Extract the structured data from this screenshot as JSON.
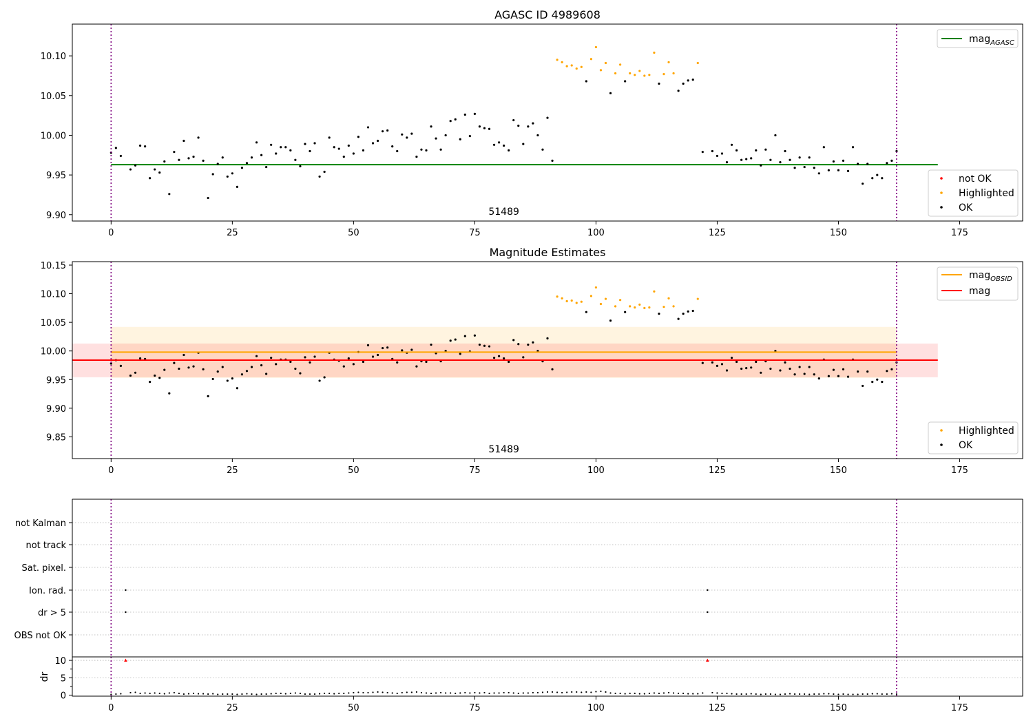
{
  "chart_data": [
    {
      "type": "scatter",
      "title": "AGASC ID 4989608",
      "xlabel": "",
      "ylabel": "",
      "xlim": [
        -8,
        188
      ],
      "ylim": [
        9.892,
        10.14
      ],
      "xticks": [
        0,
        25,
        50,
        75,
        100,
        125,
        150,
        175
      ],
      "yticks": [
        9.9,
        9.95,
        10.0,
        10.05,
        10.1
      ],
      "ytick_labels": [
        "9.90",
        "9.95",
        "10.00",
        "10.05",
        "10.10"
      ],
      "obsid_label": "51489",
      "obs_boundaries": [
        0,
        162
      ],
      "hlines": [
        {
          "name": "mag_AGASC",
          "label_main": "mag",
          "label_sub": "AGASC",
          "y": 9.963,
          "x": [
            0,
            170.5
          ],
          "color": "#008000"
        }
      ],
      "series": [
        {
          "name": "not OK",
          "color": "#ff0000",
          "points": []
        },
        {
          "name": "Highlighted",
          "color": "#ffa500",
          "x": [
            92,
            93,
            94,
            95,
            96,
            97,
            99,
            100,
            101,
            102,
            104,
            105,
            107,
            108,
            109,
            110,
            111,
            112,
            114,
            115,
            116,
            121
          ],
          "y": [
            10.095,
            10.092,
            10.087,
            10.088,
            10.084,
            10.086,
            10.096,
            10.111,
            10.082,
            10.091,
            10.078,
            10.089,
            10.078,
            10.076,
            10.081,
            10.075,
            10.076,
            10.104,
            10.077,
            10.092,
            10.078,
            10.091
          ]
        },
        {
          "name": "OK",
          "color": "#000000",
          "x": [
            0,
            1,
            2,
            4,
            5,
            6,
            7,
            8,
            9,
            10,
            11,
            12,
            13,
            14,
            15,
            16,
            17,
            18,
            19,
            20,
            21,
            22,
            23,
            24,
            25,
            26,
            27,
            28,
            29,
            30,
            31,
            32,
            33,
            34,
            35,
            36,
            37,
            38,
            39,
            40,
            41,
            42,
            43,
            44,
            45,
            46,
            47,
            48,
            49,
            50,
            51,
            52,
            53,
            54,
            55,
            56,
            57,
            58,
            59,
            60,
            61,
            62,
            63,
            64,
            65,
            66,
            67,
            68,
            69,
            70,
            71,
            72,
            73,
            74,
            75,
            76,
            77,
            78,
            79,
            80,
            81,
            82,
            83,
            84,
            85,
            86,
            87,
            88,
            89,
            90,
            91,
            98,
            103,
            106,
            113,
            117,
            118,
            119,
            120,
            122,
            124,
            125,
            126,
            127,
            128,
            129,
            130,
            131,
            132,
            133,
            134,
            135,
            136,
            137,
            138,
            139,
            140,
            141,
            142,
            143,
            144,
            145,
            146,
            147,
            148,
            149,
            150,
            151,
            152,
            153,
            154,
            155,
            156,
            157,
            158,
            159,
            160,
            161,
            162
          ],
          "y": [
            9.978,
            9.984,
            9.974,
            9.957,
            9.962,
            9.987,
            9.986,
            9.946,
            9.957,
            9.953,
            9.967,
            9.926,
            9.979,
            9.969,
            9.993,
            9.971,
            9.973,
            9.997,
            9.968,
            9.921,
            9.951,
            9.964,
            9.972,
            9.948,
            9.952,
            9.935,
            9.959,
            9.965,
            9.972,
            9.991,
            9.975,
            9.96,
            9.988,
            9.977,
            9.985,
            9.985,
            9.981,
            9.969,
            9.961,
            9.989,
            9.98,
            9.99,
            9.948,
            9.954,
            9.997,
            9.985,
            9.983,
            9.973,
            9.987,
            9.977,
            9.998,
            9.981,
            10.01,
            9.99,
            9.993,
            10.005,
            10.006,
            9.986,
            9.98,
            10.001,
            9.997,
            10.002,
            9.973,
            9.982,
            9.981,
            10.011,
            9.996,
            9.982,
            10.0,
            10.018,
            10.02,
            9.995,
            10.026,
            9.999,
            10.027,
            10.011,
            10.009,
            10.008,
            9.988,
            9.991,
            9.987,
            9.981,
            10.019,
            10.012,
            9.989,
            10.011,
            10.015,
            10.0,
            9.982,
            10.022,
            9.968,
            10.068,
            10.053,
            10.068,
            10.065,
            10.056,
            10.065,
            10.069,
            10.07,
            9.979,
            9.98,
            9.974,
            9.977,
            9.966,
            9.988,
            9.981,
            9.969,
            9.97,
            9.971,
            9.981,
            9.962,
            9.982,
            9.969,
            10.0,
            9.966,
            9.98,
            9.969,
            9.959,
            9.972,
            9.96,
            9.972,
            9.959,
            9.952,
            9.985,
            9.956,
            9.967,
            9.956,
            9.968,
            9.955,
            9.985,
            9.964,
            9.939,
            9.964,
            9.946,
            9.95,
            9.946,
            9.965,
            9.968,
            9.98
          ]
        }
      ],
      "legend_upper": {
        "position": "top-right"
      },
      "legend_lower": {
        "position": "lower-right"
      }
    },
    {
      "type": "scatter",
      "title": "Magnitude Estimates",
      "xlabel": "",
      "ylabel": "",
      "xlim": [
        -8,
        188
      ],
      "ylim": [
        9.812,
        10.156
      ],
      "xticks": [
        0,
        25,
        50,
        75,
        100,
        125,
        150,
        175
      ],
      "yticks": [
        9.85,
        9.9,
        9.95,
        10.0,
        10.05,
        10.1,
        10.15
      ],
      "ytick_labels": [
        "9.85",
        "9.90",
        "9.95",
        "10.00",
        "10.05",
        "10.10",
        "10.15"
      ],
      "obsid_label": "51489",
      "obs_boundaries": [
        0,
        162
      ],
      "bands": [
        {
          "name": "mag_OBSID band",
          "y0": 9.953,
          "y1": 10.042,
          "x": [
            0,
            162
          ],
          "color": "#ffa500",
          "opacity": 0.12
        },
        {
          "name": "mag band",
          "y0": 9.954,
          "y1": 10.013,
          "x": [
            -8,
            170.5
          ],
          "color": "#ff0000",
          "opacity": 0.12
        }
      ],
      "hlines": [
        {
          "name": "mag_OBSID",
          "label_main": "mag",
          "label_sub": "OBSID",
          "y": 9.998,
          "x": [
            0,
            162
          ],
          "color": "#ffa500"
        },
        {
          "name": "mag",
          "label_main": "mag",
          "label_sub": "",
          "y": 9.984,
          "x": [
            -8,
            170.5
          ],
          "color": "#ff0000"
        }
      ],
      "series": [
        {
          "name": "Highlighted",
          "color": "#ffa500",
          "same_as_panel": 0
        },
        {
          "name": "OK",
          "color": "#000000",
          "same_as_panel": 0
        }
      ],
      "legend_upper": {
        "position": "top-right"
      },
      "legend_lower": {
        "position": "lower-right"
      }
    },
    {
      "type": "scatter",
      "title": "",
      "xlabel": "",
      "ylabel": "",
      "flag_labels": [
        "not Kalman",
        "not track",
        "Sat. pixel.",
        "Ion. rad.",
        "dr > 5",
        "OBS not OK"
      ],
      "flag_points": [
        {
          "flag": "Ion. rad.",
          "x": [
            3,
            123
          ]
        },
        {
          "flag": "dr > 5",
          "x": [
            3,
            123
          ]
        }
      ],
      "obs_boundaries": [
        0,
        162
      ]
    },
    {
      "type": "scatter",
      "title": "",
      "xlabel": "",
      "ylabel": "dr",
      "xlim": [
        -8,
        188
      ],
      "ylim": [
        -0.3,
        11
      ],
      "xticks": [
        0,
        25,
        50,
        75,
        100,
        125,
        150,
        175
      ],
      "yticks": [
        0,
        5,
        10
      ],
      "ytick_labels": [
        "0",
        "5",
        "10"
      ],
      "obs_boundaries": [
        0,
        162
      ],
      "series": [
        {
          "name": "dr",
          "color": "#000000",
          "x": [
            0,
            1,
            2,
            3,
            4,
            5,
            6,
            7,
            8,
            9,
            10,
            11,
            12,
            13,
            14,
            15,
            16,
            17,
            18,
            19,
            20,
            21,
            22,
            23,
            24,
            25,
            26,
            27,
            28,
            29,
            30,
            31,
            32,
            33,
            34,
            35,
            36,
            37,
            38,
            39,
            40,
            41,
            42,
            43,
            44,
            45,
            46,
            47,
            48,
            49,
            50,
            51,
            52,
            53,
            54,
            55,
            56,
            57,
            58,
            59,
            60,
            61,
            62,
            63,
            64,
            65,
            66,
            67,
            68,
            69,
            70,
            71,
            72,
            73,
            74,
            75,
            76,
            77,
            78,
            79,
            80,
            81,
            82,
            83,
            84,
            85,
            86,
            87,
            88,
            89,
            90,
            91,
            92,
            93,
            94,
            95,
            96,
            97,
            98,
            99,
            100,
            101,
            102,
            103,
            104,
            105,
            106,
            107,
            108,
            109,
            110,
            111,
            112,
            113,
            114,
            115,
            116,
            117,
            118,
            119,
            120,
            121,
            122,
            123,
            124,
            125,
            126,
            127,
            128,
            129,
            130,
            131,
            132,
            133,
            134,
            135,
            136,
            137,
            138,
            139,
            140,
            141,
            142,
            143,
            144,
            145,
            146,
            147,
            148,
            149,
            150,
            151,
            152,
            153,
            154,
            155,
            156,
            157,
            158,
            159,
            160,
            161,
            162
          ],
          "y": [
            0.2,
            0.3,
            0.4,
            10,
            0.7,
            0.8,
            0.5,
            0.6,
            0.5,
            0.6,
            0.5,
            0.4,
            0.6,
            0.7,
            0.5,
            0.3,
            0.4,
            0.5,
            0.4,
            0.4,
            0.3,
            0.4,
            0.2,
            0.3,
            0.3,
            0.3,
            0.2,
            0.3,
            0.4,
            0.3,
            0.2,
            0.3,
            0.3,
            0.4,
            0.5,
            0.5,
            0.4,
            0.5,
            0.6,
            0.5,
            0.3,
            0.3,
            0.3,
            0.4,
            0.5,
            0.5,
            0.4,
            0.5,
            0.5,
            0.6,
            0.7,
            0.8,
            0.7,
            0.7,
            0.8,
            0.9,
            0.8,
            0.7,
            0.6,
            0.5,
            0.7,
            0.8,
            0.8,
            0.9,
            0.7,
            0.6,
            0.5,
            0.6,
            0.7,
            0.6,
            0.6,
            0.5,
            0.6,
            0.7,
            0.6,
            0.7,
            0.6,
            0.7,
            0.5,
            0.6,
            0.6,
            0.7,
            0.7,
            0.6,
            0.5,
            0.6,
            0.6,
            0.7,
            0.7,
            0.8,
            0.9,
            0.9,
            0.8,
            0.7,
            0.8,
            0.9,
            0.9,
            0.8,
            0.9,
            0.8,
            1.0,
            1.1,
            0.9,
            0.6,
            0.5,
            0.5,
            0.4,
            0.5,
            0.5,
            0.4,
            0.4,
            0.5,
            0.6,
            0.5,
            0.6,
            0.7,
            0.6,
            0.5,
            0.5,
            0.4,
            0.4,
            0.4,
            0.6,
            10,
            0.7,
            0.6,
            0.5,
            0.5,
            0.4,
            0.3,
            0.3,
            0.3,
            0.4,
            0.3,
            0.2,
            0.3,
            0.3,
            0.2,
            0.2,
            0.3,
            0.4,
            0.3,
            0.3,
            0.3,
            0.2,
            0.3,
            0.3,
            0.4,
            0.4,
            0.3,
            0.2,
            0.3,
            0.2,
            0.2,
            0.2,
            0.3,
            0.3,
            0.4,
            0.4,
            0.3,
            0.3,
            0.4,
            0.3
          ]
        },
        {
          "name": "dr > 5",
          "color": "#ff0000",
          "marker": "triangle",
          "x": [
            3,
            123
          ],
          "y": [
            10,
            10
          ]
        }
      ]
    }
  ]
}
